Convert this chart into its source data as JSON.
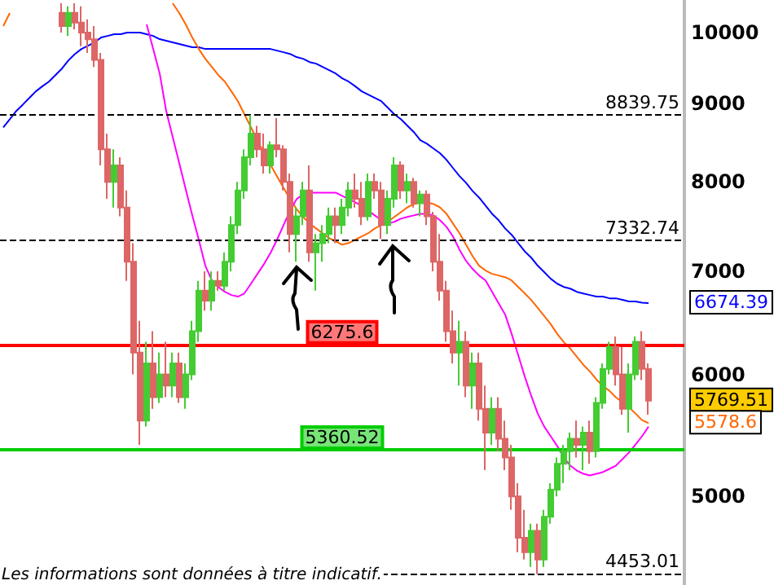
{
  "chart_data": {
    "type": "candlestick",
    "categories": [
      null,
      null,
      null,
      null,
      null,
      null,
      null,
      null,
      null,
      null,
      null,
      null,
      null,
      null,
      null,
      null,
      null,
      null,
      null,
      null,
      null,
      null,
      null,
      null,
      null,
      null,
      null,
      null,
      null,
      null,
      null,
      null,
      null,
      null,
      null,
      null,
      null,
      null,
      null,
      null,
      null,
      null,
      null,
      null,
      null,
      null,
      null,
      null,
      null,
      null,
      null,
      null,
      null,
      null,
      null,
      null,
      null,
      null,
      null,
      null,
      null,
      null,
      null,
      null,
      null,
      null,
      null,
      null,
      null,
      null,
      null,
      null,
      null,
      null,
      null,
      null,
      null,
      null,
      null,
      null,
      null,
      null,
      null,
      null,
      null,
      null,
      null,
      null,
      null,
      null,
      null,
      null,
      null,
      null,
      null,
      null,
      null,
      null,
      null,
      null,
      null,
      null,
      null,
      null,
      null
    ],
    "series": [
      {
        "type": "line",
        "color": "#0000ff",
        "values": [
          8680,
          8787,
          8895,
          8980,
          9070,
          9160,
          9230,
          9294,
          9385,
          9477,
          9594,
          9687,
          9759,
          9807,
          9855,
          9927,
          9951,
          9976,
          9976,
          10000,
          10000,
          10000,
          9976,
          9951,
          9903,
          9879,
          9855,
          9831,
          9807,
          9783,
          9783,
          9759,
          9759,
          9759,
          9759,
          9759,
          9759,
          9759,
          9759,
          9759,
          9759,
          9759,
          9735,
          9711,
          9687,
          9641,
          9617,
          9570,
          9547,
          9500,
          9454,
          9408,
          9340,
          9294,
          9230,
          9160,
          9115,
          9070,
          9026,
          8938,
          8851,
          8787,
          8702,
          8618,
          8514,
          8470,
          8410,
          8352,
          8269,
          8168,
          8070,
          7990,
          7893,
          7816,
          7722,
          7628,
          7555,
          7463,
          7392,
          7302,
          7212,
          7144,
          7059,
          6991,
          6922,
          6871,
          6838,
          6821,
          6788,
          6772,
          6756,
          6740,
          6740,
          6723,
          6723,
          6707,
          6691,
          6691,
          6680,
          6674.39,
          null,
          null,
          null,
          null,
          null
        ]
      },
      {
        "type": "candlestick",
        "colors": [
          null,
          null,
          null,
          null,
          null,
          null,
          null,
          null,
          null,
          "#dd6666",
          "#44cc33",
          "#dd6666",
          "#dd6666",
          "#dd6666",
          "#dd6666",
          "#dd6666",
          "#dd6666",
          "#44cc33",
          "#dd6666",
          "#dd6666",
          "#dd6666",
          "#dd6666",
          "#44cc33",
          "#dd6666",
          "#44cc33",
          "#dd6666",
          "#44cc33",
          "#dd6666",
          "#44cc33",
          "#44cc33",
          "#44cc33",
          "#dd6666",
          "#44cc33",
          "#dd6666",
          "#44cc33",
          "#44cc33",
          "#44cc33",
          "#44cc33",
          "#44cc33",
          "#dd6666",
          "#dd6666",
          "#44cc33",
          "#dd6666",
          "#dd6666",
          "#dd6666",
          "#44cc33",
          "#44cc33",
          "#dd6666",
          "#44cc33",
          "#44cc33",
          "#44cc33",
          "#dd6666",
          "#44cc33",
          "#44cc33",
          "#dd6666",
          "#dd6666",
          "#44cc33",
          "#dd6666",
          "#dd6666",
          "#44cc33",
          "#44cc33",
          "#dd6666",
          "#44cc33",
          "#dd6666",
          "#44cc33",
          "#dd6666",
          "#dd6666",
          "#dd6666",
          "#dd6666",
          "#dd6666",
          "#44cc33",
          "#dd6666",
          "#44cc33",
          "#dd6666",
          "#dd6666",
          "#44cc33",
          "#dd6666",
          "#dd6666",
          "#dd6666",
          "#dd6666",
          "#dd6666",
          "#44cc33",
          "#dd6666",
          "#44cc33",
          "#44cc33",
          "#44cc33",
          "#44cc33",
          "#44cc33",
          "#dd6666",
          "#44cc33",
          "#dd6666",
          "#44cc33",
          "#44cc33",
          "#44cc33",
          "#dd6666",
          "#dd6666",
          "#44cc33",
          "#44cc33",
          "#dd6666",
          "#dd6666",
          null,
          null,
          null,
          null,
          null
        ],
        "ohlc": [
          null,
          null,
          null,
          null,
          null,
          null,
          null,
          null,
          null,
          [
            10300,
            10450,
            10000,
            10100
          ],
          [
            10100,
            10400,
            9950,
            10300
          ],
          [
            10300,
            10450,
            10050,
            10150
          ],
          [
            10150,
            10400,
            9800,
            10000
          ],
          [
            10000,
            10200,
            9700,
            9900
          ],
          [
            9900,
            10100,
            9500,
            9600
          ],
          [
            9600,
            9700,
            8200,
            8400
          ],
          [
            8400,
            8600,
            7800,
            8000
          ],
          [
            8000,
            8400,
            7700,
            8200
          ],
          [
            8200,
            8300,
            7600,
            7700
          ],
          [
            7700,
            7900,
            6900,
            7100
          ],
          [
            7100,
            7300,
            6000,
            6200
          ],
          [
            6200,
            6500,
            5400,
            5600
          ],
          [
            5600,
            6300,
            5550,
            6100
          ],
          [
            6100,
            6400,
            5700,
            5800
          ],
          [
            5800,
            6200,
            5750,
            6000
          ],
          [
            6000,
            6300,
            5800,
            5900
          ],
          [
            5900,
            6200,
            5800,
            6100
          ],
          [
            6100,
            6200,
            5750,
            5800
          ],
          [
            5800,
            6100,
            5700,
            6000
          ],
          [
            6000,
            6500,
            5950,
            6400
          ],
          [
            6400,
            6900,
            6300,
            6800
          ],
          [
            6800,
            7000,
            6600,
            6700
          ],
          [
            6700,
            7000,
            6600,
            6900
          ],
          [
            6900,
            7000,
            6800,
            6850
          ],
          [
            6850,
            7200,
            6800,
            7100
          ],
          [
            7100,
            7600,
            7000,
            7500
          ],
          [
            7500,
            8000,
            7400,
            7900
          ],
          [
            7900,
            8400,
            7800,
            8300
          ],
          [
            8300,
            8839.75,
            8200,
            8600
          ],
          [
            8600,
            8700,
            8300,
            8400
          ],
          [
            8400,
            8600,
            8100,
            8200
          ],
          [
            8200,
            8500,
            8100,
            8450
          ],
          [
            8450,
            8800,
            8300,
            8400
          ],
          [
            8400,
            8450,
            7900,
            8000
          ],
          [
            8000,
            8100,
            7200,
            7400
          ],
          [
            7400,
            7700,
            7100,
            7600
          ],
          [
            7600,
            8000,
            7500,
            7900
          ],
          [
            7900,
            8200,
            7100,
            7200
          ],
          [
            7200,
            7400,
            6800,
            7300
          ],
          [
            7300,
            7500,
            7100,
            7400
          ],
          [
            7400,
            7700,
            7300,
            7600
          ],
          [
            7600,
            7700,
            7300,
            7500
          ],
          [
            7500,
            7800,
            7400,
            7700
          ],
          [
            7700,
            8000,
            7600,
            7900
          ],
          [
            7900,
            8100,
            7700,
            7800
          ],
          [
            7800,
            8000,
            7500,
            7600
          ],
          [
            7600,
            8100,
            7550,
            8000
          ],
          [
            8000,
            8100,
            7800,
            7900
          ],
          [
            7900,
            8000,
            7350,
            7500
          ],
          [
            7500,
            7900,
            7400,
            7800
          ],
          [
            7800,
            8300,
            7700,
            8200
          ],
          [
            8200,
            8250,
            7800,
            7900
          ],
          [
            7900,
            8100,
            7750,
            8000
          ],
          [
            8000,
            8050,
            7700,
            7750
          ],
          [
            7750,
            7900,
            7600,
            7850
          ],
          [
            7850,
            7900,
            7500,
            7600
          ],
          [
            7600,
            7650,
            7000,
            7100
          ],
          [
            7100,
            7400,
            6700,
            6800
          ],
          [
            6800,
            6900,
            6300,
            6400
          ],
          [
            6400,
            6600,
            6100,
            6200
          ],
          [
            6200,
            6500,
            5900,
            6300
          ],
          [
            6300,
            6400,
            5800,
            5900
          ],
          [
            5900,
            6200,
            5700,
            6100
          ],
          [
            6100,
            6200,
            5600,
            5700
          ],
          [
            5700,
            5900,
            5200,
            5500
          ],
          [
            5500,
            5800,
            5400,
            5700
          ],
          [
            5700,
            5800,
            5350,
            5450
          ],
          [
            5450,
            5600,
            5200,
            5300
          ],
          [
            5300,
            5400,
            4900,
            5000
          ],
          [
            5000,
            5100,
            4600,
            4700
          ],
          [
            4700,
            4900,
            4550,
            4600
          ],
          [
            4600,
            4800,
            4500,
            4750
          ],
          [
            4750,
            4800,
            4453.01,
            4550
          ],
          [
            4550,
            4900,
            4500,
            4850
          ],
          [
            4850,
            5100,
            4800,
            5050
          ],
          [
            5050,
            5300,
            5000,
            5250
          ],
          [
            5250,
            5400,
            5100,
            5350
          ],
          [
            5350,
            5500,
            5200,
            5450
          ],
          [
            5450,
            5600,
            5300,
            5400
          ],
          [
            5400,
            5550,
            5200,
            5500
          ],
          [
            5500,
            5600,
            5250,
            5350
          ],
          [
            5350,
            5800,
            5300,
            5750
          ],
          [
            5750,
            6100,
            5700,
            6050
          ],
          [
            6050,
            6300,
            6000,
            6250
          ],
          [
            6250,
            6350,
            5900,
            6000
          ],
          [
            6000,
            6250,
            5650,
            5700
          ],
          [
            5700,
            6100,
            5500,
            6000
          ],
          [
            6000,
            6350,
            5950,
            6300
          ],
          [
            6300,
            6400,
            5950,
            6050
          ],
          [
            6050,
            6100,
            5650,
            5769.51
          ],
          null,
          null,
          null,
          null,
          null
        ]
      },
      {
        "type": "line",
        "color": "#ff6600",
        "values": [
          10098,
          10297,
          null,
          null,
          null,
          null,
          null,
          null,
          null,
          null,
          null,
          null,
          null,
          null,
          null,
          null,
          null,
          null,
          null,
          null,
          null,
          null,
          null,
          null,
          null,
          null,
          10449,
          10297,
          10123,
          9927,
          9759,
          9617,
          9500,
          9385,
          9294,
          9160,
          9026,
          8851,
          8680,
          8514,
          8352,
          8208,
          8066,
          7930,
          7797,
          7683,
          7592,
          7518,
          7463,
          7410,
          7356,
          7320,
          7284,
          7302,
          7338,
          7374,
          7410,
          7463,
          7500,
          7537,
          7592,
          7646,
          7702,
          7740,
          7759,
          7759,
          7740,
          7702,
          7628,
          7518,
          7410,
          7284,
          7161,
          7059,
          7008,
          6973,
          6956,
          6939,
          6905,
          6838,
          6773,
          6707,
          6627,
          6547,
          6468,
          6374,
          6297,
          6236,
          6161,
          6087,
          6027,
          5955,
          5897,
          5855,
          5798,
          5756,
          5714,
          5659,
          5604,
          5578.6,
          null,
          null,
          null,
          null,
          null
        ]
      },
      {
        "type": "line",
        "color": "#ff00ff",
        "values": [
          null,
          null,
          null,
          null,
          null,
          null,
          null,
          null,
          null,
          null,
          null,
          null,
          null,
          null,
          null,
          null,
          null,
          null,
          null,
          null,
          null,
          null,
          10123,
          9759,
          9408,
          8895,
          8556,
          8228,
          7912,
          7610,
          7338,
          7059,
          6905,
          6838,
          6788,
          6756,
          6740,
          6773,
          6871,
          6973,
          7076,
          7194,
          7338,
          7500,
          7665,
          7797,
          7854,
          7873,
          7873,
          7873,
          7873,
          7873,
          7835,
          7797,
          7759,
          7721,
          7665,
          7610,
          7555,
          7518,
          7537,
          7573,
          7592,
          7610,
          7628,
          7628,
          7610,
          7555,
          7481,
          7374,
          7230,
          7110,
          7025,
          6956,
          6905,
          6788,
          6674,
          6563,
          6374,
          6176,
          5983,
          5812,
          5659,
          5550,
          5470,
          5390,
          5300,
          5235,
          5197,
          5172,
          5160,
          5172,
          5185,
          5210,
          5235,
          5287,
          5339,
          5403,
          5470,
          5550,
          null,
          null,
          null,
          null,
          null
        ]
      }
    ],
    "log": "y",
    "ylim": [
      4380,
      10500
    ],
    "yticks": [
      5000,
      6000,
      7000,
      8000,
      9000,
      10000
    ],
    "tick_labels": "y",
    "ref_lines": [
      {
        "axis": "y",
        "value": 8839.75,
        "label": "8839.75",
        "color": "#000000",
        "line_style": "dashed"
      },
      {
        "axis": "y",
        "value": 7332.74,
        "label": "7332.74",
        "color": "#000000",
        "line_style": "dashed"
      },
      {
        "axis": "y",
        "value": 4453.01,
        "label": "4453.01",
        "color": "#000000",
        "line_style": "dashed"
      },
      {
        "axis": "y",
        "value": 6275.6,
        "label": "6275.6",
        "color": "#ff0000",
        "line_style": "solid"
      },
      {
        "axis": "y",
        "value": 5360.52,
        "label": "5360.52",
        "color": "#00cc00",
        "line_style": "solid"
      }
    ],
    "annotations": [
      "6674.39",
      "5769.51",
      "5578.6",
      "Les informations sont données à titre indicatif."
    ]
  }
}
